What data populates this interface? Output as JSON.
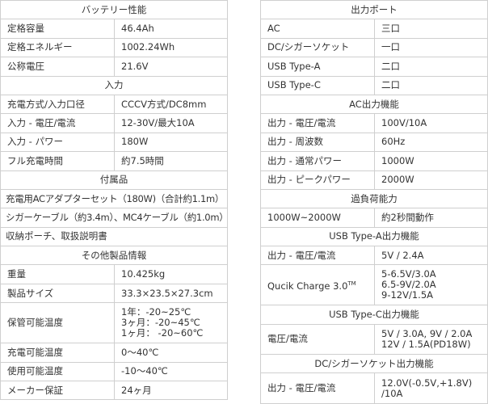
{
  "left": {
    "battery": {
      "title": "バッテリー性能",
      "rows": [
        [
          "定格容量",
          "46.4Ah"
        ],
        [
          "定格エネルギー",
          "1002.24Wh"
        ],
        [
          "公称電圧",
          "21.6V"
        ]
      ]
    },
    "input": {
      "title": "入力",
      "rows": [
        [
          "充電方式/入力口径",
          "CCCV方式/DC8mm"
        ],
        [
          "入力 - 電圧/電流",
          "12-30V/最大10A"
        ],
        [
          "入力 - パワー",
          "180W"
        ],
        [
          "フル充電時間",
          "約7.5時間"
        ]
      ]
    },
    "accessories": {
      "title": "付属品",
      "items": [
        "充電用ACアダプターセット（180W)（合計約1.1m）",
        "シガーケーブル（約3.4m）、MC4ケーブル（約1.0m）",
        "収納ポーチ、取扱説明書"
      ]
    },
    "other": {
      "title": "その他製品情報",
      "rows": [
        [
          "重量",
          "10.425kg"
        ],
        [
          "製品サイズ",
          "33.3×23.5×27.3cm"
        ],
        [
          "保管可能温度",
          "1年：-20~25℃\n3ヶ月：-20~45℃\n1ヶ月： -20~60℃"
        ],
        [
          "充電可能温度",
          "0〜40℃"
        ],
        [
          "使用可能温度",
          "-10〜40℃"
        ],
        [
          "メーカー保証",
          "24ヶ月"
        ]
      ]
    }
  },
  "right": {
    "ports": {
      "title": "出力ポート",
      "rows": [
        [
          "AC",
          "三口"
        ],
        [
          "DC/シガーソケット",
          "一口"
        ],
        [
          "USB Type-A",
          "二口"
        ],
        [
          "USB Type-C",
          "二口"
        ]
      ]
    },
    "ac": {
      "title": "AC出力機能",
      "rows": [
        [
          "出力 - 電圧/電流",
          "100V/10A"
        ],
        [
          "出力 - 周波数",
          "60Hz"
        ],
        [
          "出力 - 通常パワー",
          "1000W"
        ],
        [
          "出力 - ピークパワー",
          "2000W"
        ]
      ]
    },
    "overload": {
      "title": "過負荷能力",
      "rows": [
        [
          "1000W~2000W",
          "約2秒間動作"
        ]
      ]
    },
    "usba": {
      "title": "USB Type-A出力機能",
      "rows": [
        [
          "出力 - 電圧/電流",
          "5V / 2.4A"
        ],
        [
          "Qucik Charge 3.0",
          "5-6.5V/3.0A\n6.5-9V/2.0A\n9-12V/1.5A"
        ]
      ],
      "tm": "TM"
    },
    "usbc": {
      "title": "USB Type-C出力機能",
      "rows": [
        [
          "電圧/電流",
          "5V / 3.0A, 9V / 2.0A\n12V / 1.5A(PD18W)"
        ]
      ]
    },
    "dc": {
      "title": "DC/シガーソケット出力機能",
      "rows": [
        [
          "出力 - 電圧/電流",
          "12.0V(-0.5V,+1.8V)\n/10A"
        ]
      ]
    }
  }
}
